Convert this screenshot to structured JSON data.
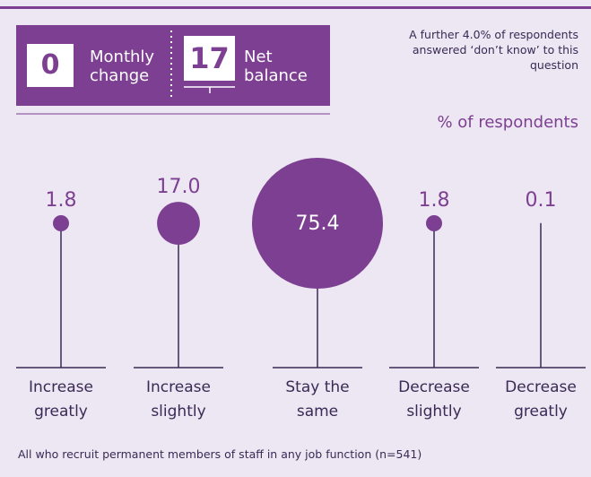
{
  "chart_data": {
    "type": "bubble",
    "monthly_change": {
      "value": 0,
      "label": "Monthly change"
    },
    "net_balance": {
      "value": 17,
      "label": "Net balance"
    },
    "note": "A further 4.0% of respondents answered ‘don’t know’ to this question",
    "axis_label": "% of respondents",
    "categories": [
      "Increase greatly",
      "Increase slightly",
      "Stay the same",
      "Decrease slightly",
      "Decrease greatly"
    ],
    "values": [
      1.8,
      17.0,
      75.4,
      1.8,
      0.1
    ],
    "value_labels": [
      "1.8",
      "17.0",
      "75.4",
      "1.8",
      "0.1"
    ],
    "color": "#7d3f92",
    "footnote": "All who recruit permanent members of staff in any job function (n=541)"
  }
}
